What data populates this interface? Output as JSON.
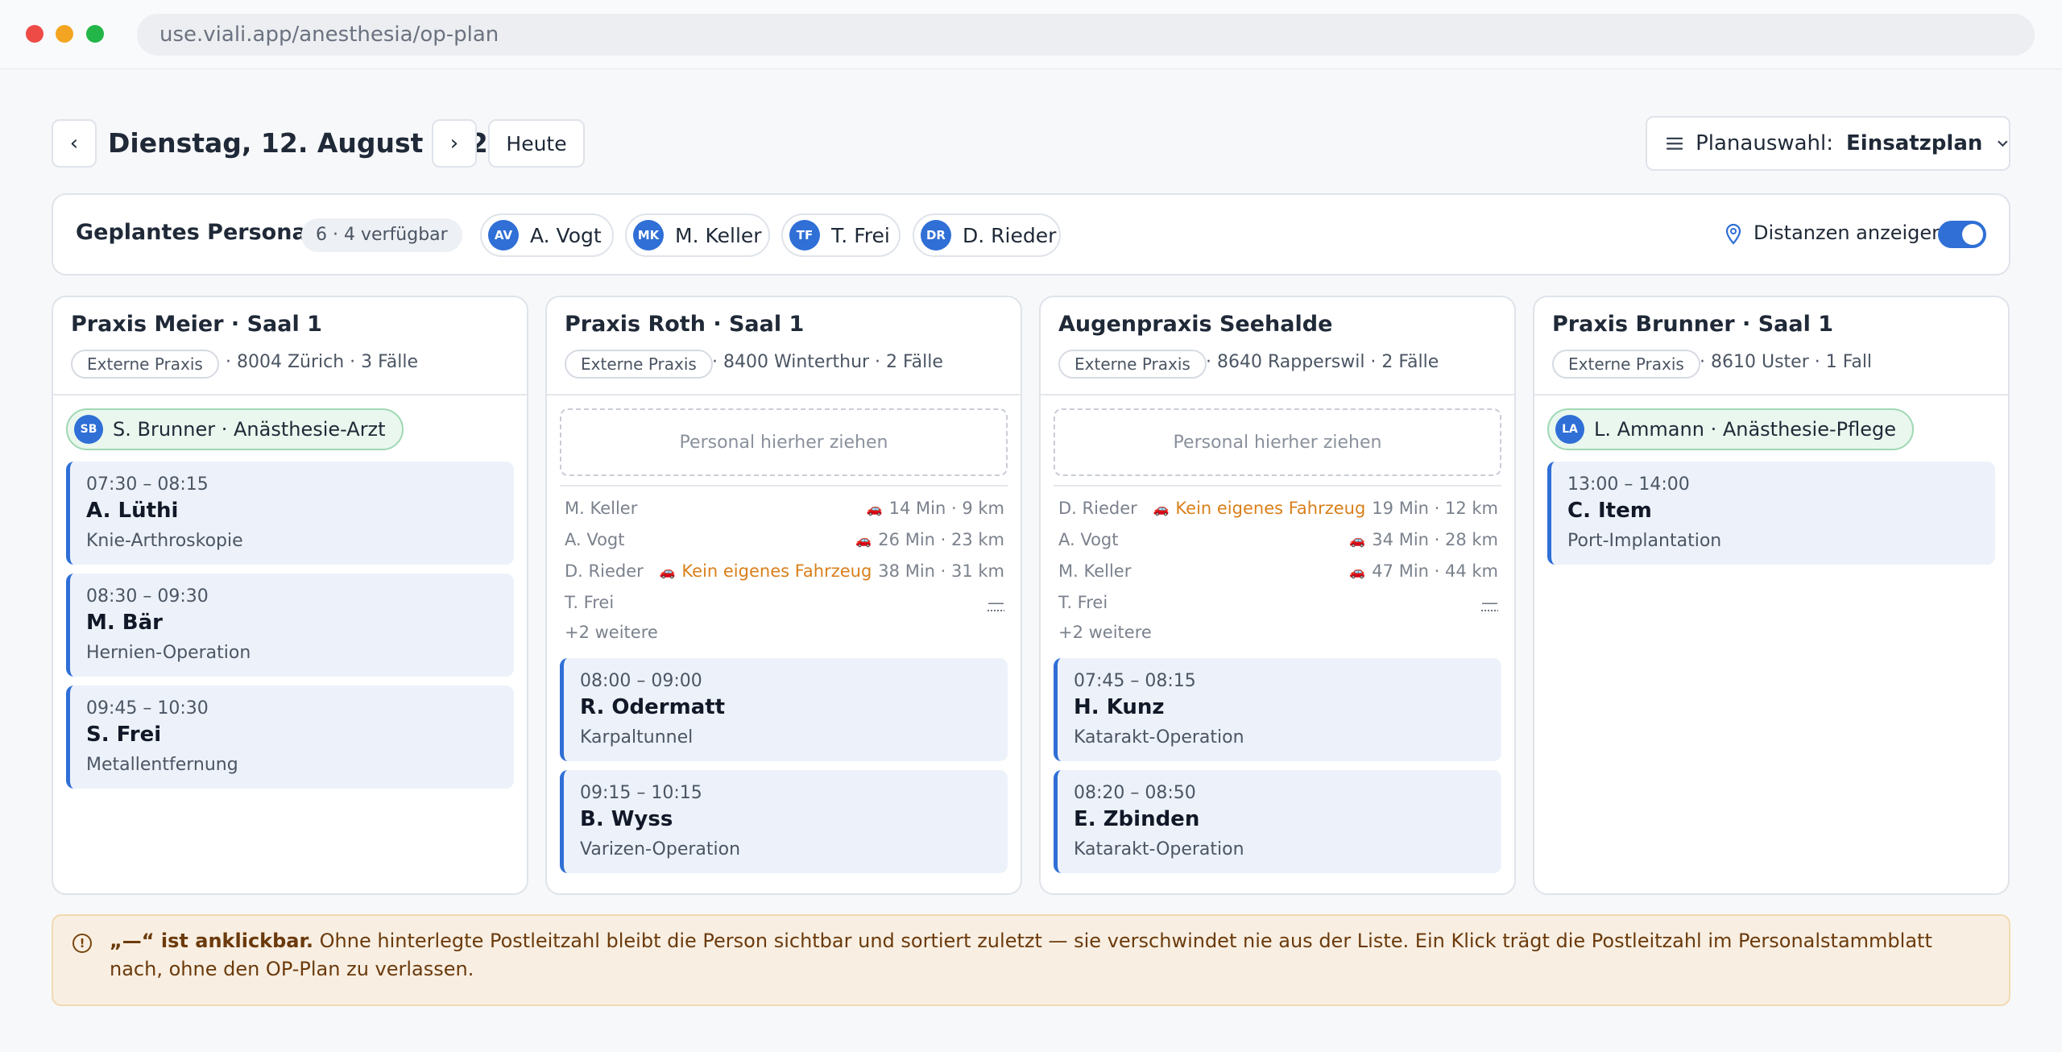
{
  "browser": {
    "url": "use.viali.app/anesthesia/op-plan"
  },
  "header": {
    "prev_label": "‹",
    "next_label": "›",
    "date": "Dienstag, 12. August 2026",
    "today_label": "Heute",
    "plan_label": "Planauswahl:",
    "plan_value": "Einsatzplan"
  },
  "staff_bar": {
    "title": "Geplantes Personal",
    "count": "6 · 4 verfügbar",
    "people": [
      {
        "initials": "AV",
        "name": "A. Vogt"
      },
      {
        "initials": "MK",
        "name": "M. Keller"
      },
      {
        "initials": "TF",
        "name": "T. Frei"
      },
      {
        "initials": "DR",
        "name": "D. Rieder"
      }
    ],
    "distance_label": "Distanzen anzeigen",
    "distance_on": true
  },
  "columns": [
    {
      "title": "Praxis Meier · Saal 1",
      "tag": "Externe Praxis",
      "meta": "· 8004 Zürich · 3 Fälle",
      "assigned": {
        "initials": "SB",
        "label": "S. Brunner · Anästhesie-Arzt"
      },
      "cases": [
        {
          "time": "07:30 – 08:15",
          "name": "A. Lüthi",
          "procedure": "Knie-Arthroskopie"
        },
        {
          "time": "08:30 – 09:30",
          "name": "M. Bär",
          "procedure": "Hernien-Operation"
        },
        {
          "time": "09:45 – 10:30",
          "name": "S. Frei",
          "procedure": "Metallentfernung"
        }
      ]
    },
    {
      "title": "Praxis Roth · Saal 1",
      "tag": "Externe Praxis",
      "meta": "· 8400 Winterthur · 2 Fälle",
      "drop_hint": "Personal hierher ziehen",
      "distances": [
        {
          "name": "M. Keller",
          "warning": "",
          "value": "14 Min · 9 km"
        },
        {
          "name": "A. Vogt",
          "warning": "",
          "value": "26 Min · 23 km"
        },
        {
          "name": "D. Rieder",
          "warning": "Kein eigenes Fahrzeug",
          "value": "38 Min · 31 km"
        },
        {
          "name": "T. Frei",
          "warning": "",
          "value": "—"
        }
      ],
      "more": "+2 weitere",
      "cases": [
        {
          "time": "08:00 – 09:00",
          "name": "R. Odermatt",
          "procedure": "Karpaltunnel"
        },
        {
          "time": "09:15 – 10:15",
          "name": "B. Wyss",
          "procedure": "Varizen-Operation"
        }
      ]
    },
    {
      "title": "Augenpraxis Seehalde",
      "tag": "Externe Praxis",
      "meta": "· 8640 Rapperswil · 2 Fälle",
      "drop_hint": "Personal hierher ziehen",
      "distances": [
        {
          "name": "D. Rieder",
          "warning": "Kein eigenes Fahrzeug",
          "value": "19 Min · 12 km"
        },
        {
          "name": "A. Vogt",
          "warning": "",
          "value": "34 Min · 28 km"
        },
        {
          "name": "M. Keller",
          "warning": "",
          "value": "47 Min · 44 km"
        },
        {
          "name": "T. Frei",
          "warning": "",
          "value": "—"
        }
      ],
      "more": "+2 weitere",
      "cases": [
        {
          "time": "07:45 – 08:15",
          "name": "H. Kunz",
          "procedure": "Katarakt-Operation"
        },
        {
          "time": "08:20 – 08:50",
          "name": "E. Zbinden",
          "procedure": "Katarakt-Operation"
        }
      ]
    },
    {
      "title": "Praxis Brunner · Saal 1",
      "tag": "Externe Praxis",
      "meta": "· 8610 Uster · 1 Fall",
      "assigned": {
        "initials": "LA",
        "label": "L. Ammann · Anästhesie-Pflege"
      },
      "cases": [
        {
          "time": "13:00 – 14:00",
          "name": "C. Item",
          "procedure": "Port-Implantation"
        }
      ]
    }
  ],
  "notice": {
    "icon": "alert-circle-icon",
    "bold": "„—“ ist anklickbar.",
    "text": " Ohne hinterlegte Postleitzahl bleibt die Person sichtbar und sortiert zuletzt — sie verschwindet nie aus der Liste. Ein Klick trägt die Postleitzahl im Personalstammblatt nach, ohne den OP-Plan zu verlassen."
  },
  "colors": {
    "accent": "#2f6fd6",
    "warning": "#d97f1a",
    "assigned_bg": "#e9f7ee",
    "notice_bg": "#f8efe2"
  }
}
